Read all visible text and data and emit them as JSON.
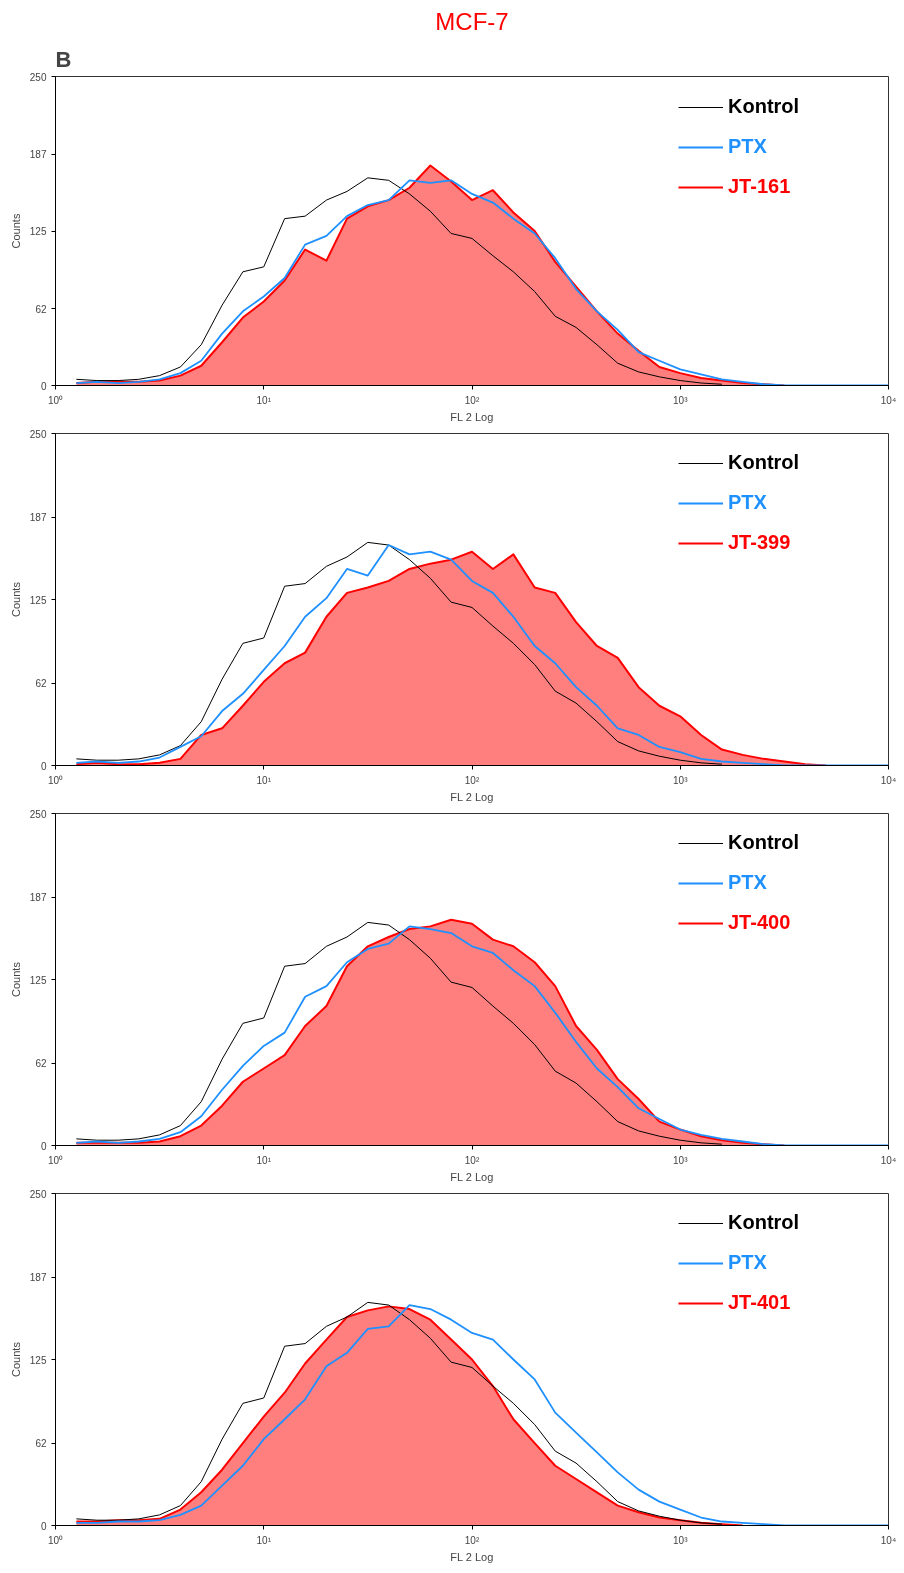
{
  "chart_data": [
    {
      "type": "line",
      "title": "MCF-7",
      "annotations": [
        "B"
      ],
      "xlabel": "FL 2 Log",
      "ylabel": "Counts",
      "log": "x",
      "xlim": [
        1,
        10000
      ],
      "ylim": [
        0,
        250
      ],
      "xticks": [
        {
          "value": 1,
          "label": "10⁰"
        },
        {
          "value": 10,
          "label": "10¹"
        },
        {
          "value": 100,
          "label": "10²"
        },
        {
          "value": 1000,
          "label": "10³"
        },
        {
          "value": 10000,
          "label": "10⁴"
        }
      ],
      "yticks": [
        0,
        62,
        125,
        187,
        250
      ],
      "grid": false,
      "legend": "top right",
      "x": [
        1.26,
        1.58,
        2,
        2.51,
        3.16,
        3.98,
        5.01,
        6.31,
        7.94,
        10,
        12.6,
        15.8,
        20,
        25.1,
        31.6,
        39.8,
        50.1,
        63.1,
        79.4,
        100,
        126,
        158,
        200,
        251,
        316,
        398,
        501,
        631,
        794,
        1000,
        1259,
        1585,
        1995,
        2512,
        3162,
        3981,
        5012,
        6310,
        7943,
        10000
      ],
      "series": [
        {
          "name": "Kontrol",
          "color": "#000000",
          "values": [
            5,
            4,
            4,
            5,
            8,
            15,
            33,
            65,
            92,
            96,
            135,
            137,
            150,
            157,
            168,
            166,
            155,
            141,
            123,
            119,
            105,
            92,
            76,
            56,
            47,
            33,
            18,
            11,
            7,
            4,
            2,
            1,
            null,
            null,
            null,
            null,
            null,
            null,
            null,
            null
          ]
        },
        {
          "name": "PTX",
          "color": "#1e90ff",
          "values": [
            2,
            3,
            2,
            3,
            5,
            10,
            20,
            42,
            60,
            72,
            87,
            114,
            121,
            137,
            146,
            150,
            166,
            164,
            166,
            155,
            148,
            135,
            123,
            103,
            78,
            60,
            45,
            27,
            20,
            13,
            9,
            5,
            3,
            1,
            0,
            0,
            0,
            0,
            0,
            0
          ]
        },
        {
          "name": "JT-161",
          "type": "area",
          "color": "#ff0000",
          "values": [
            2,
            3,
            3,
            3,
            4,
            8,
            16,
            35,
            55,
            68,
            85,
            110,
            101,
            135,
            145,
            150,
            160,
            178,
            165,
            150,
            158,
            140,
            125,
            100,
            80,
            60,
            42,
            28,
            15,
            10,
            6,
            4,
            2,
            1,
            0,
            null,
            null,
            null,
            null,
            null
          ]
        }
      ]
    },
    {
      "type": "line",
      "xlabel": "FL 2 Log",
      "ylabel": "Counts",
      "log": "x",
      "xlim": [
        1,
        10000
      ],
      "ylim": [
        0,
        250
      ],
      "xticks": [
        {
          "value": 1,
          "label": "10⁰"
        },
        {
          "value": 10,
          "label": "10¹"
        },
        {
          "value": 100,
          "label": "10²"
        },
        {
          "value": 1000,
          "label": "10³"
        },
        {
          "value": 10000,
          "label": "10⁴"
        }
      ],
      "yticks": [
        0,
        62,
        125,
        187,
        250
      ],
      "grid": false,
      "legend": "top right",
      "x": [
        1.26,
        1.58,
        2,
        2.51,
        3.16,
        3.98,
        5.01,
        6.31,
        7.94,
        10,
        12.6,
        15.8,
        20,
        25.1,
        31.6,
        39.8,
        50.1,
        63.1,
        79.4,
        100,
        126,
        158,
        200,
        251,
        316,
        398,
        501,
        631,
        794,
        1000,
        1259,
        1585,
        1995,
        2512,
        3162,
        3981,
        5012,
        6310,
        7943,
        10000
      ],
      "series": [
        {
          "name": "Kontrol",
          "color": "#000000",
          "values": [
            5,
            4,
            4,
            5,
            8,
            15,
            33,
            65,
            92,
            96,
            135,
            137,
            150,
            157,
            168,
            166,
            155,
            141,
            123,
            119,
            105,
            92,
            76,
            56,
            47,
            33,
            18,
            11,
            7,
            4,
            2,
            1,
            null,
            null,
            null,
            null,
            null,
            null,
            null,
            null
          ]
        },
        {
          "name": "PTX",
          "color": "#1e90ff",
          "values": [
            2,
            3,
            2,
            3,
            6,
            14,
            22,
            41,
            54,
            72,
            90,
            112,
            126,
            148,
            143,
            166,
            159,
            161,
            155,
            139,
            130,
            112,
            90,
            77,
            59,
            45,
            28,
            23,
            14,
            10,
            5,
            3,
            2,
            1,
            0,
            0,
            0,
            0,
            0,
            0
          ]
        },
        {
          "name": "JT-399",
          "type": "area",
          "color": "#ff0000",
          "values": [
            1,
            2,
            1,
            1,
            2,
            5,
            23,
            28,
            45,
            63,
            77,
            85,
            112,
            130,
            134,
            139,
            148,
            152,
            155,
            161,
            148,
            159,
            134,
            130,
            108,
            90,
            81,
            59,
            45,
            37,
            23,
            12,
            8,
            5,
            3,
            1,
            0,
            null,
            null,
            null
          ]
        }
      ]
    },
    {
      "type": "line",
      "xlabel": "FL 2 Log",
      "ylabel": "Counts",
      "log": "x",
      "xlim": [
        1,
        10000
      ],
      "ylim": [
        0,
        250
      ],
      "xticks": [
        {
          "value": 1,
          "label": "10⁰"
        },
        {
          "value": 10,
          "label": "10¹"
        },
        {
          "value": 100,
          "label": "10²"
        },
        {
          "value": 1000,
          "label": "10³"
        },
        {
          "value": 10000,
          "label": "10⁴"
        }
      ],
      "yticks": [
        0,
        62,
        125,
        187,
        250
      ],
      "grid": false,
      "legend": "top right",
      "x": [
        1.26,
        1.58,
        2,
        2.51,
        3.16,
        3.98,
        5.01,
        6.31,
        7.94,
        10,
        12.6,
        15.8,
        20,
        25.1,
        31.6,
        39.8,
        50.1,
        63.1,
        79.4,
        100,
        126,
        158,
        200,
        251,
        316,
        398,
        501,
        631,
        794,
        1000,
        1259,
        1585,
        1995,
        2512,
        3162,
        3981,
        5012,
        6310,
        7943,
        10000
      ],
      "series": [
        {
          "name": "Kontrol",
          "color": "#000000",
          "values": [
            5,
            4,
            4,
            5,
            8,
            15,
            33,
            65,
            92,
            96,
            135,
            137,
            150,
            157,
            168,
            166,
            155,
            141,
            123,
            119,
            105,
            92,
            76,
            56,
            47,
            33,
            18,
            11,
            7,
            4,
            2,
            1,
            null,
            null,
            null,
            null,
            null,
            null,
            null,
            null
          ]
        },
        {
          "name": "PTX",
          "color": "#1e90ff",
          "values": [
            2,
            3,
            2,
            3,
            5,
            10,
            22,
            42,
            60,
            75,
            85,
            112,
            120,
            138,
            148,
            152,
            165,
            163,
            160,
            150,
            145,
            132,
            120,
            100,
            78,
            58,
            44,
            28,
            20,
            12,
            8,
            5,
            3,
            1,
            0,
            0,
            0,
            0,
            0,
            0
          ]
        },
        {
          "name": "JT-400",
          "type": "area",
          "color": "#ff0000",
          "values": [
            2,
            2,
            2,
            2,
            3,
            7,
            15,
            30,
            48,
            58,
            68,
            90,
            105,
            135,
            150,
            157,
            163,
            165,
            170,
            167,
            155,
            150,
            138,
            120,
            90,
            72,
            50,
            35,
            18,
            12,
            7,
            4,
            2,
            1,
            0,
            null,
            null,
            null,
            null,
            null
          ]
        }
      ]
    },
    {
      "type": "line",
      "xlabel": "FL 2 Log",
      "ylabel": "Counts",
      "log": "x",
      "xlim": [
        1,
        10000
      ],
      "ylim": [
        0,
        250
      ],
      "xticks": [
        {
          "value": 1,
          "label": "10⁰"
        },
        {
          "value": 10,
          "label": "10¹"
        },
        {
          "value": 100,
          "label": "10²"
        },
        {
          "value": 1000,
          "label": "10³"
        },
        {
          "value": 10000,
          "label": "10⁴"
        }
      ],
      "yticks": [
        0,
        62,
        125,
        187,
        250
      ],
      "grid": false,
      "legend": "top right",
      "x": [
        1.26,
        1.58,
        2,
        2.51,
        3.16,
        3.98,
        5.01,
        6.31,
        7.94,
        10,
        12.6,
        15.8,
        20,
        25.1,
        31.6,
        39.8,
        50.1,
        63.1,
        79.4,
        100,
        126,
        158,
        200,
        251,
        316,
        398,
        501,
        631,
        794,
        1000,
        1259,
        1585,
        1995,
        2512,
        3162,
        3981,
        5012,
        6310,
        7943,
        10000
      ],
      "series": [
        {
          "name": "Kontrol",
          "color": "#000000",
          "values": [
            5,
            4,
            4,
            5,
            8,
            15,
            33,
            65,
            92,
            96,
            135,
            137,
            150,
            157,
            168,
            166,
            155,
            141,
            123,
            119,
            105,
            92,
            76,
            56,
            47,
            33,
            18,
            11,
            7,
            4,
            2,
            1,
            null,
            null,
            null,
            null,
            null,
            null,
            null,
            null
          ]
        },
        {
          "name": "PTX",
          "color": "#1e90ff",
          "values": [
            2,
            2,
            3,
            3,
            4,
            8,
            15,
            30,
            45,
            65,
            80,
            95,
            120,
            130,
            148,
            150,
            166,
            163,
            155,
            145,
            140,
            125,
            110,
            85,
            70,
            55,
            40,
            27,
            18,
            12,
            6,
            3,
            2,
            1,
            0,
            0,
            0,
            0,
            0,
            0
          ]
        },
        {
          "name": "JT-401",
          "type": "area",
          "color": "#ff0000",
          "values": [
            3,
            3,
            4,
            4,
            5,
            12,
            25,
            42,
            62,
            82,
            100,
            122,
            140,
            157,
            162,
            165,
            163,
            155,
            140,
            125,
            105,
            80,
            62,
            45,
            35,
            25,
            15,
            10,
            6,
            4,
            2,
            1,
            0,
            null,
            null,
            null,
            null,
            null,
            null,
            null
          ]
        }
      ]
    }
  ]
}
